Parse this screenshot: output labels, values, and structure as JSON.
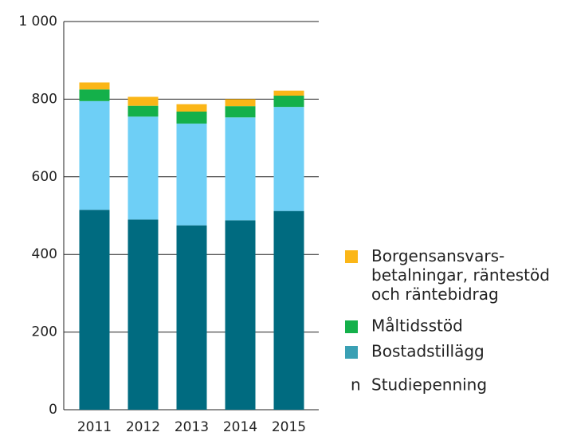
{
  "chart_data": {
    "type": "stacked_bar",
    "categories": [
      "2011",
      "2012",
      "2013",
      "2014",
      "2015"
    ],
    "series": [
      {
        "name": "Studiepenning",
        "color": "#006b80",
        "marker": "n",
        "values": [
          515,
          490,
          475,
          488,
          512
        ]
      },
      {
        "name": "Bostadstillägg",
        "color": "#6ecff6",
        "legend_color": "#3aa0b4",
        "values": [
          280,
          265,
          262,
          265,
          268
        ]
      },
      {
        "name": "Måltidsstöd",
        "color": "#14b04a",
        "values": [
          30,
          28,
          31,
          29,
          29
        ]
      },
      {
        "name": "Borgensansvars-\nbetalningar, räntestöd\noch räntebidrag",
        "color": "#fbb617",
        "values": [
          18,
          23,
          19,
          18,
          13
        ]
      }
    ],
    "ylim": [
      0,
      1000
    ],
    "yticks": [
      0,
      200,
      400,
      600,
      800,
      {
        "value": 1000,
        "label": "1 000"
      }
    ],
    "grid": true,
    "legend": "right"
  }
}
